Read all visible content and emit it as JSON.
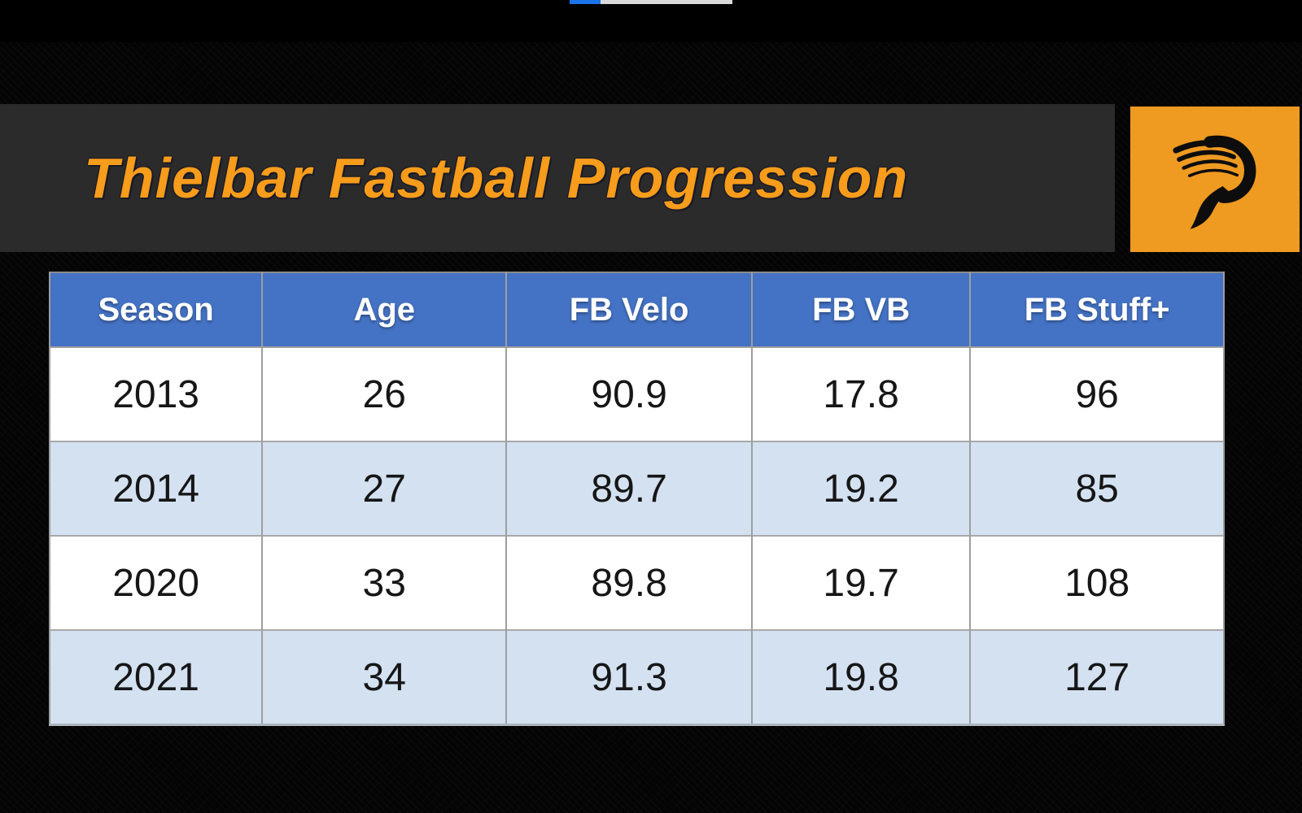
{
  "slide": {
    "title": "Thielbar Fastball Progression",
    "title_color": "#f89c1b",
    "band_color": "#2b2b2b",
    "background_color": "#000000"
  },
  "video_progress": {
    "percent": 19,
    "fill_color": "#1a73e8",
    "track_color": "#d9d9d9"
  },
  "logo": {
    "icon": "pitcher-list-wing-p-logo",
    "box_color": "#ef9a20",
    "glyph_color": "#0d0d0d"
  },
  "table_colors": {
    "header_bg": "#4472c4",
    "header_text": "#ffffff",
    "row_plain": "#ffffff",
    "row_alt": "#d3e1f1",
    "grid_line": "#9e9e9e"
  },
  "chart_data": {
    "type": "table",
    "title": "Thielbar Fastball Progression",
    "columns": [
      "Season",
      "Age",
      "FB Velo",
      "FB VB",
      "FB Stuff+"
    ],
    "rows": [
      [
        "2013",
        "26",
        "90.9",
        "17.8",
        "96"
      ],
      [
        "2014",
        "27",
        "89.7",
        "19.2",
        "85"
      ],
      [
        "2020",
        "33",
        "89.8",
        "19.7",
        "108"
      ],
      [
        "2021",
        "34",
        "91.3",
        "19.8",
        "127"
      ]
    ]
  }
}
